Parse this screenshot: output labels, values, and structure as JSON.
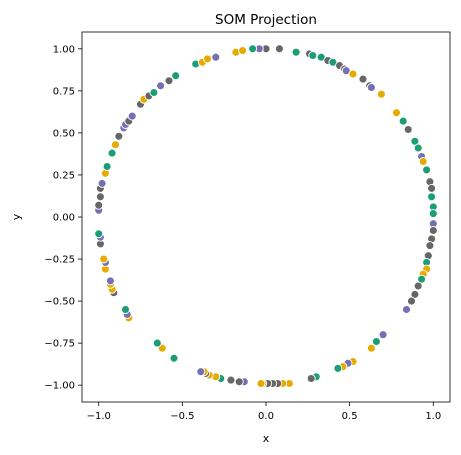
{
  "chart_data": {
    "type": "scatter",
    "title": "SOM Projection",
    "xlabel": "x",
    "ylabel": "y",
    "xlim": [
      -1.1,
      1.1
    ],
    "ylim": [
      -1.1,
      1.1
    ],
    "xticks": [
      -1.0,
      -0.5,
      0.0,
      0.5,
      1.0
    ],
    "yticks": [
      -1.0,
      -0.75,
      -0.5,
      -0.25,
      0.0,
      0.25,
      0.5,
      0.75,
      1.0
    ],
    "xtick_labels": [
      "−1.0",
      "−0.5",
      "0.0",
      "0.5",
      "1.0"
    ],
    "ytick_labels": [
      "−1.00",
      "−0.75",
      "−0.50",
      "−0.25",
      "0.00",
      "0.25",
      "0.50",
      "0.75",
      "1.00"
    ],
    "grid": false,
    "colors": {
      "green": "#1b9e77",
      "gold": "#e6ab02",
      "purple": "#7570b3",
      "gray": "#666666"
    },
    "points": [
      {
        "x": 0.0,
        "y": 1.0,
        "c": "gray"
      },
      {
        "x": 0.08,
        "y": 1.0,
        "c": "gray"
      },
      {
        "x": -0.04,
        "y": 1.0,
        "c": "purple"
      },
      {
        "x": -0.08,
        "y": 1.0,
        "c": "green"
      },
      {
        "x": 0.18,
        "y": 0.98,
        "c": "green"
      },
      {
        "x": 0.26,
        "y": 0.97,
        "c": "gray"
      },
      {
        "x": 0.28,
        "y": 0.96,
        "c": "green"
      },
      {
        "x": 0.33,
        "y": 0.95,
        "c": "green"
      },
      {
        "x": 0.37,
        "y": 0.93,
        "c": "gray"
      },
      {
        "x": 0.4,
        "y": 0.92,
        "c": "green"
      },
      {
        "x": 0.44,
        "y": 0.9,
        "c": "gray"
      },
      {
        "x": 0.47,
        "y": 0.88,
        "c": "gray"
      },
      {
        "x": 0.48,
        "y": 0.87,
        "c": "purple"
      },
      {
        "x": 0.52,
        "y": 0.85,
        "c": "gold"
      },
      {
        "x": 0.58,
        "y": 0.82,
        "c": "gray"
      },
      {
        "x": 0.62,
        "y": 0.78,
        "c": "gray"
      },
      {
        "x": 0.63,
        "y": 0.77,
        "c": "purple"
      },
      {
        "x": 0.69,
        "y": 0.73,
        "c": "gold"
      },
      {
        "x": 0.78,
        "y": 0.62,
        "c": "gold"
      },
      {
        "x": 0.82,
        "y": 0.57,
        "c": "green"
      },
      {
        "x": 0.85,
        "y": 0.52,
        "c": "gray"
      },
      {
        "x": 0.89,
        "y": 0.45,
        "c": "green"
      },
      {
        "x": 0.91,
        "y": 0.41,
        "c": "green"
      },
      {
        "x": 0.93,
        "y": 0.36,
        "c": "purple"
      },
      {
        "x": 0.94,
        "y": 0.33,
        "c": "gold"
      },
      {
        "x": 0.96,
        "y": 0.28,
        "c": "green"
      },
      {
        "x": 0.98,
        "y": 0.21,
        "c": "gray"
      },
      {
        "x": 0.99,
        "y": 0.17,
        "c": "gray"
      },
      {
        "x": 0.99,
        "y": 0.12,
        "c": "green"
      },
      {
        "x": 1.0,
        "y": 0.06,
        "c": "green"
      },
      {
        "x": 1.0,
        "y": 0.02,
        "c": "green"
      },
      {
        "x": 1.0,
        "y": -0.04,
        "c": "purple"
      },
      {
        "x": 1.0,
        "y": -0.08,
        "c": "gray"
      },
      {
        "x": 0.99,
        "y": -0.13,
        "c": "gray"
      },
      {
        "x": 0.98,
        "y": -0.17,
        "c": "gray"
      },
      {
        "x": 0.97,
        "y": -0.23,
        "c": "gray"
      },
      {
        "x": 0.96,
        "y": -0.27,
        "c": "green"
      },
      {
        "x": 0.96,
        "y": -0.31,
        "c": "gold"
      },
      {
        "x": 0.94,
        "y": -0.34,
        "c": "gold"
      },
      {
        "x": 0.93,
        "y": -0.37,
        "c": "green"
      },
      {
        "x": 0.91,
        "y": -0.41,
        "c": "gray"
      },
      {
        "x": 0.89,
        "y": -0.46,
        "c": "gray"
      },
      {
        "x": 0.87,
        "y": -0.5,
        "c": "gray"
      },
      {
        "x": 0.84,
        "y": -0.55,
        "c": "purple"
      },
      {
        "x": 0.7,
        "y": -0.7,
        "c": "purple"
      },
      {
        "x": 0.66,
        "y": -0.74,
        "c": "green"
      },
      {
        "x": 0.63,
        "y": -0.78,
        "c": "gold"
      },
      {
        "x": 0.52,
        "y": -0.86,
        "c": "gold"
      },
      {
        "x": 0.49,
        "y": -0.87,
        "c": "purple"
      },
      {
        "x": 0.46,
        "y": -0.89,
        "c": "gold"
      },
      {
        "x": 0.43,
        "y": -0.9,
        "c": "green"
      },
      {
        "x": 0.3,
        "y": -0.95,
        "c": "green"
      },
      {
        "x": 0.27,
        "y": -0.96,
        "c": "gray"
      },
      {
        "x": 0.14,
        "y": -0.99,
        "c": "gold"
      },
      {
        "x": 0.1,
        "y": -0.99,
        "c": "gold"
      },
      {
        "x": 0.07,
        "y": -0.99,
        "c": "gray"
      },
      {
        "x": 0.04,
        "y": -0.99,
        "c": "gray"
      },
      {
        "x": 0.01,
        "y": -0.99,
        "c": "gray"
      },
      {
        "x": -0.02,
        "y": -0.99,
        "c": "gold"
      },
      {
        "x": -0.03,
        "y": -0.99,
        "c": "gold"
      },
      {
        "x": -0.13,
        "y": -0.98,
        "c": "purple"
      },
      {
        "x": -0.16,
        "y": -0.98,
        "c": "gray"
      },
      {
        "x": -0.21,
        "y": -0.97,
        "c": "gray"
      },
      {
        "x": -0.27,
        "y": -0.96,
        "c": "green"
      },
      {
        "x": -0.3,
        "y": -0.95,
        "c": "gold"
      },
      {
        "x": -0.34,
        "y": -0.94,
        "c": "gold"
      },
      {
        "x": -0.36,
        "y": -0.93,
        "c": "gray"
      },
      {
        "x": -0.37,
        "y": -0.92,
        "c": "gold"
      },
      {
        "x": -0.39,
        "y": -0.92,
        "c": "purple"
      },
      {
        "x": -0.55,
        "y": -0.84,
        "c": "green"
      },
      {
        "x": -0.62,
        "y": -0.78,
        "c": "gold"
      },
      {
        "x": -0.65,
        "y": -0.75,
        "c": "green"
      },
      {
        "x": -0.82,
        "y": -0.6,
        "c": "gold"
      },
      {
        "x": -0.83,
        "y": -0.58,
        "c": "purple"
      },
      {
        "x": -0.84,
        "y": -0.55,
        "c": "green"
      },
      {
        "x": -0.91,
        "y": -0.45,
        "c": "gray"
      },
      {
        "x": -0.92,
        "y": -0.43,
        "c": "gold"
      },
      {
        "x": -0.93,
        "y": -0.4,
        "c": "gold"
      },
      {
        "x": -0.93,
        "y": -0.38,
        "c": "purple"
      },
      {
        "x": -0.96,
        "y": -0.31,
        "c": "gold"
      },
      {
        "x": -0.96,
        "y": -0.27,
        "c": "purple"
      },
      {
        "x": -0.97,
        "y": -0.25,
        "c": "gold"
      },
      {
        "x": -0.99,
        "y": -0.16,
        "c": "gray"
      },
      {
        "x": -0.99,
        "y": -0.12,
        "c": "purple"
      },
      {
        "x": -1.0,
        "y": -0.1,
        "c": "green"
      },
      {
        "x": -1.0,
        "y": 0.04,
        "c": "purple"
      },
      {
        "x": -1.0,
        "y": 0.07,
        "c": "gray"
      },
      {
        "x": -0.99,
        "y": 0.12,
        "c": "gray"
      },
      {
        "x": -0.99,
        "y": 0.17,
        "c": "gray"
      },
      {
        "x": -0.98,
        "y": 0.2,
        "c": "purple"
      },
      {
        "x": -0.96,
        "y": 0.26,
        "c": "gold"
      },
      {
        "x": -0.95,
        "y": 0.3,
        "c": "green"
      },
      {
        "x": -0.92,
        "y": 0.38,
        "c": "green"
      },
      {
        "x": -0.9,
        "y": 0.43,
        "c": "gold"
      },
      {
        "x": -0.88,
        "y": 0.48,
        "c": "gray"
      },
      {
        "x": -0.85,
        "y": 0.53,
        "c": "purple"
      },
      {
        "x": -0.84,
        "y": 0.55,
        "c": "purple"
      },
      {
        "x": -0.82,
        "y": 0.57,
        "c": "gray"
      },
      {
        "x": -0.8,
        "y": 0.6,
        "c": "purple"
      },
      {
        "x": -0.75,
        "y": 0.67,
        "c": "gray"
      },
      {
        "x": -0.73,
        "y": 0.7,
        "c": "gold"
      },
      {
        "x": -0.7,
        "y": 0.72,
        "c": "gray"
      },
      {
        "x": -0.67,
        "y": 0.74,
        "c": "green"
      },
      {
        "x": -0.63,
        "y": 0.78,
        "c": "purple"
      },
      {
        "x": -0.58,
        "y": 0.81,
        "c": "gray"
      },
      {
        "x": -0.54,
        "y": 0.84,
        "c": "green"
      },
      {
        "x": -0.42,
        "y": 0.91,
        "c": "green"
      },
      {
        "x": -0.38,
        "y": 0.92,
        "c": "gold"
      },
      {
        "x": -0.35,
        "y": 0.94,
        "c": "gold"
      },
      {
        "x": -0.3,
        "y": 0.95,
        "c": "purple"
      },
      {
        "x": -0.18,
        "y": 0.98,
        "c": "gold"
      },
      {
        "x": -0.14,
        "y": 0.99,
        "c": "gold"
      }
    ]
  }
}
